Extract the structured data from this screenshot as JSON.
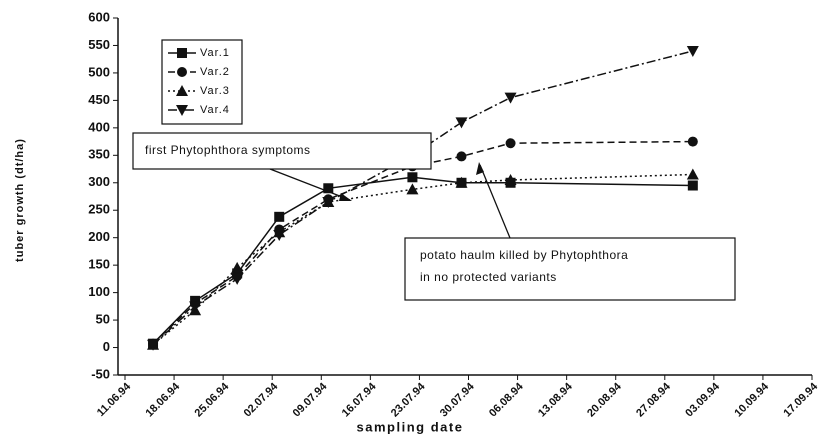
{
  "chart_data": {
    "type": "line",
    "xlabel": "sampling date",
    "ylabel": "tuber growth (dt/ha)",
    "x": [
      "15.06.94",
      "21.06.94",
      "27.06.94",
      "03.07.94",
      "10.07.94",
      "22.07.94",
      "29.07.94",
      "05.08.94",
      "31.08.94"
    ],
    "series": [
      {
        "name": "Var.1",
        "color": "#111111",
        "marker": "square",
        "dash": "solid",
        "values": [
          7,
          85,
          135,
          238,
          290,
          310,
          300,
          300,
          295
        ]
      },
      {
        "name": "Var.2",
        "color": "#111111",
        "marker": "circle",
        "dash": "dashed",
        "values": [
          7,
          80,
          130,
          215,
          270,
          330,
          348,
          372,
          375
        ]
      },
      {
        "name": "Var.3",
        "color": "#111111",
        "marker": "triangle-up",
        "dash": "dotted",
        "values": [
          5,
          68,
          145,
          210,
          265,
          288,
          300,
          305,
          315
        ]
      },
      {
        "name": "Var.4",
        "color": "#111111",
        "marker": "triangle-down",
        "dash": "dashdot",
        "values": [
          5,
          75,
          125,
          205,
          265,
          350,
          410,
          455,
          540
        ]
      }
    ],
    "xlim": [
      "11.06.94",
      "17.09.94"
    ],
    "xticks": [
      "11.06.94",
      "18.06.94",
      "25.06.94",
      "02.07.94",
      "09.07.94",
      "16.07.94",
      "23.07.94",
      "30.07.94",
      "06.08.94",
      "13.08.94",
      "20.08.94",
      "27.08.94",
      "03.09.94",
      "10.09.94",
      "17.09.94"
    ],
    "ylim": [
      -50,
      600
    ],
    "yticks": [
      -50,
      0,
      50,
      100,
      150,
      200,
      250,
      300,
      350,
      400,
      450,
      500,
      550,
      600
    ],
    "legend": "upper left",
    "annotations": [
      {
        "text": "first Phytophthora symptoms"
      },
      {
        "text": [
          "potato haulm killed by Phytophthora",
          "in no protected variants"
        ]
      }
    ]
  }
}
